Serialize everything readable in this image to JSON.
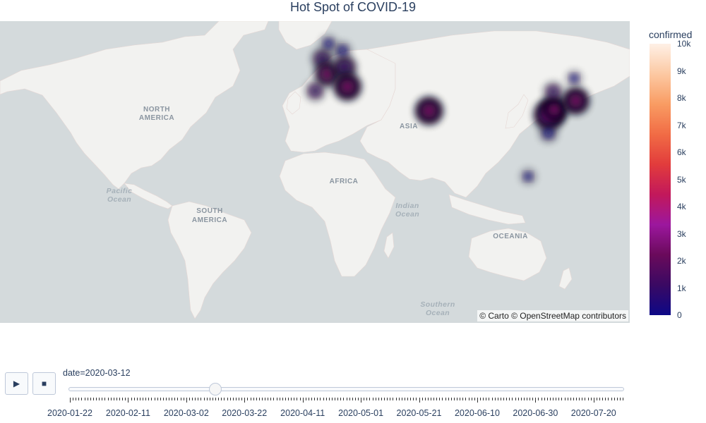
{
  "title": "Hot Spot of COVID-19",
  "map": {
    "attribution": "© Carto © OpenStreetMap contributors",
    "region_labels": [
      "NORTH",
      "AMERICA",
      "SOUTH",
      "AMERICA",
      "AFRICA",
      "ASIA",
      "OCEANIA"
    ],
    "ocean_labels": [
      "Pacific",
      "Ocean",
      "Indian",
      "Ocean",
      "Southern",
      "Ocean"
    ],
    "colors": {
      "ocean": "#d4dadc",
      "land": "#f2f2f0",
      "border": "#e6d7d4"
    }
  },
  "colorbar": {
    "title": "confirmed",
    "min": 0,
    "max": 10000,
    "tick_labels": [
      "0",
      "1k",
      "2k",
      "3k",
      "4k",
      "5k",
      "6k",
      "7k",
      "8k",
      "9k",
      "10k"
    ],
    "tick_values": [
      0,
      1000,
      2000,
      3000,
      4000,
      5000,
      6000,
      7000,
      8000,
      9000,
      10000
    ],
    "colorscale": [
      "#0d0887",
      "#3a0963",
      "#6a0a5b",
      "#9c179e",
      "#c2185b",
      "#e23c3c",
      "#f16c45",
      "#f99c63",
      "#fcc9a3",
      "#fef0e6"
    ]
  },
  "hotspots": [
    {
      "lat": 51.5,
      "lon": -0.1,
      "z": 900
    },
    {
      "lat": 46.5,
      "lon": 2.3,
      "z": 1800
    },
    {
      "lat": 48.8,
      "lon": 11.0,
      "z": 1500
    },
    {
      "lat": 42.0,
      "lon": 12.5,
      "z": 2600
    },
    {
      "lat": 40.4,
      "lon": -3.7,
      "z": 600
    },
    {
      "lat": 54.0,
      "lon": 10.0,
      "z": 300
    },
    {
      "lat": 56.0,
      "lon": 3.0,
      "z": 200
    },
    {
      "lat": 32.4,
      "lon": 53.7,
      "z": 2700
    },
    {
      "lat": 30.6,
      "lon": 114.3,
      "z": 3600
    },
    {
      "lat": 33.0,
      "lon": 117.0,
      "z": 2200
    },
    {
      "lat": 36.5,
      "lon": 127.8,
      "z": 2400
    },
    {
      "lat": 40.0,
      "lon": 116.4,
      "z": 600
    },
    {
      "lat": 45.0,
      "lon": 127.0,
      "z": 150
    },
    {
      "lat": 22.5,
      "lon": 114.0,
      "z": 400
    },
    {
      "lat": 1.3,
      "lon": 103.8,
      "z": 120
    }
  ],
  "controls": {
    "play_icon": "▶",
    "stop_icon": "■",
    "slider_prefix": "date=",
    "current_date": "2020-03-12",
    "current_label": "date=2020-03-12",
    "current_index": 50,
    "total_steps": 191,
    "date_labels": [
      "2020-01-22",
      "2020-02-11",
      "2020-03-02",
      "2020-03-22",
      "2020-04-11",
      "2020-05-01",
      "2020-05-21",
      "2020-06-10",
      "2020-06-30",
      "2020-07-20"
    ]
  }
}
